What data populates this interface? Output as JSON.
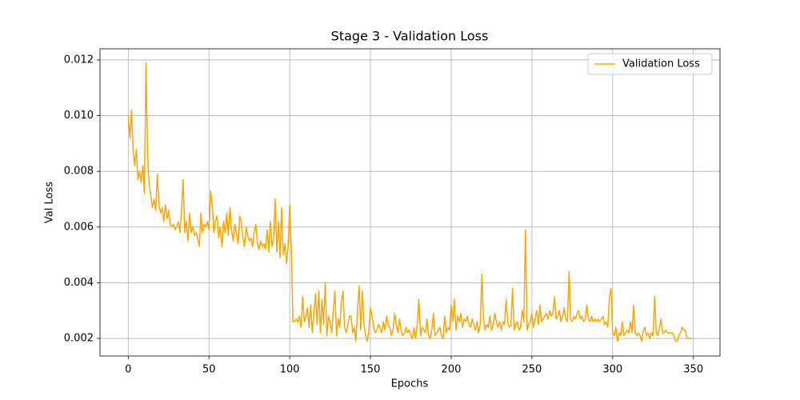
{
  "chart_data": {
    "type": "line",
    "title": "Stage 3 - Validation Loss",
    "x_label": "Epochs",
    "y_label": "Val Loss",
    "xlim": [
      -17.5,
      366.5
    ],
    "ylim": [
      0.00137,
      0.0124
    ],
    "xticks": [
      0,
      50,
      100,
      150,
      200,
      250,
      300,
      350
    ],
    "yticks": [
      0.002,
      0.004,
      0.006,
      0.008,
      {
        "value": 0.01,
        "label": "0.010"
      },
      0.012
    ],
    "grid": true,
    "legend": "upper right",
    "x": [
      0,
      1,
      2,
      3,
      4,
      5,
      6,
      7,
      8,
      9,
      10,
      11,
      12,
      13,
      14,
      15,
      16,
      17,
      18,
      19,
      20,
      21,
      22,
      23,
      24,
      25,
      26,
      27,
      28,
      29,
      30,
      31,
      32,
      33,
      34,
      35,
      36,
      37,
      38,
      39,
      40,
      41,
      42,
      43,
      44,
      45,
      46,
      47,
      48,
      49,
      50,
      51,
      52,
      53,
      54,
      55,
      56,
      57,
      58,
      59,
      60,
      61,
      62,
      63,
      64,
      65,
      66,
      67,
      68,
      69,
      70,
      71,
      72,
      73,
      74,
      75,
      76,
      77,
      78,
      79,
      80,
      81,
      82,
      83,
      84,
      85,
      86,
      87,
      88,
      89,
      90,
      91,
      92,
      93,
      94,
      95,
      96,
      97,
      98,
      99,
      100,
      101,
      102,
      103,
      104,
      105,
      106,
      107,
      108,
      109,
      110,
      111,
      112,
      113,
      114,
      115,
      116,
      117,
      118,
      119,
      120,
      121,
      122,
      123,
      124,
      125,
      126,
      127,
      128,
      129,
      130,
      131,
      132,
      133,
      134,
      135,
      136,
      137,
      138,
      139,
      140,
      141,
      142,
      143,
      144,
      145,
      146,
      147,
      148,
      149,
      150,
      151,
      152,
      153,
      154,
      155,
      156,
      157,
      158,
      159,
      160,
      161,
      162,
      163,
      164,
      165,
      166,
      167,
      168,
      169,
      170,
      171,
      172,
      173,
      174,
      175,
      176,
      177,
      178,
      179,
      180,
      181,
      182,
      183,
      184,
      185,
      186,
      187,
      188,
      189,
      190,
      191,
      192,
      193,
      194,
      195,
      196,
      197,
      198,
      199,
      200,
      201,
      202,
      203,
      204,
      205,
      206,
      207,
      208,
      209,
      210,
      211,
      212,
      213,
      214,
      215,
      216,
      217,
      218,
      219,
      220,
      221,
      222,
      223,
      224,
      225,
      226,
      227,
      228,
      229,
      230,
      231,
      232,
      233,
      234,
      235,
      236,
      237,
      238,
      239,
      240,
      241,
      242,
      243,
      244,
      245,
      246,
      247,
      248,
      249,
      250,
      251,
      252,
      253,
      254,
      255,
      256,
      257,
      258,
      259,
      260,
      261,
      262,
      263,
      264,
      265,
      266,
      267,
      268,
      269,
      270,
      271,
      272,
      273,
      274,
      275,
      276,
      277,
      278,
      279,
      280,
      281,
      282,
      283,
      284,
      285,
      286,
      287,
      288,
      289,
      290,
      291,
      292,
      293,
      294,
      295,
      296,
      297,
      298,
      299,
      300,
      301,
      302,
      303,
      304,
      305,
      306,
      307,
      308,
      309,
      310,
      311,
      312,
      313,
      314,
      315,
      316,
      317,
      318,
      319,
      320,
      321,
      322,
      323,
      324,
      325,
      326,
      327,
      328,
      329,
      330,
      331,
      332,
      333,
      334,
      335,
      336,
      337,
      338,
      339,
      340,
      341,
      342,
      343,
      344,
      345,
      346,
      347,
      348,
      349
    ],
    "series": [
      {
        "name": "Validation Loss",
        "color": "#ffa500",
        "values": [
          0.01,
          0.0092,
          0.0102,
          0.0088,
          0.0082,
          0.0088,
          0.0077,
          0.008,
          0.0076,
          0.0082,
          0.0072,
          0.0119,
          0.0085,
          0.0075,
          0.0071,
          0.0067,
          0.007,
          0.0066,
          0.0079,
          0.0068,
          0.0065,
          0.0067,
          0.0062,
          0.0068,
          0.0063,
          0.0066,
          0.0061,
          0.006,
          0.0061,
          0.0059,
          0.006,
          0.0062,
          0.0058,
          0.0066,
          0.0077,
          0.0058,
          0.0062,
          0.0055,
          0.0065,
          0.0058,
          0.006,
          0.0057,
          0.0058,
          0.0056,
          0.0053,
          0.0065,
          0.0058,
          0.0061,
          0.006,
          0.0062,
          0.0059,
          0.0073,
          0.0068,
          0.0058,
          0.0062,
          0.0064,
          0.0056,
          0.006,
          0.0053,
          0.0062,
          0.0058,
          0.0065,
          0.0057,
          0.0067,
          0.0059,
          0.0055,
          0.0061,
          0.0058,
          0.0054,
          0.0064,
          0.0062,
          0.0056,
          0.0053,
          0.006,
          0.0057,
          0.0055,
          0.0056,
          0.0053,
          0.0058,
          0.0061,
          0.0054,
          0.0052,
          0.0055,
          0.0053,
          0.0054,
          0.0052,
          0.0059,
          0.0051,
          0.0062,
          0.0053,
          0.0056,
          0.007,
          0.0051,
          0.0062,
          0.0049,
          0.0067,
          0.005,
          0.0054,
          0.0047,
          0.0053,
          0.0068,
          0.0052,
          0.0026,
          0.0026,
          0.0027,
          0.0026,
          0.0028,
          0.0024,
          0.0035,
          0.0026,
          0.0028,
          0.0031,
          0.0024,
          0.0032,
          0.0022,
          0.0029,
          0.0036,
          0.0025,
          0.0037,
          0.0022,
          0.0034,
          0.0025,
          0.004,
          0.0021,
          0.0028,
          0.0026,
          0.0022,
          0.003,
          0.0037,
          0.0021,
          0.0027,
          0.0024,
          0.0033,
          0.0037,
          0.0024,
          0.0022,
          0.0025,
          0.0028,
          0.0028,
          0.0022,
          0.0024,
          0.0019,
          0.003,
          0.0039,
          0.0023,
          0.0037,
          0.0025,
          0.0021,
          0.0019,
          0.0023,
          0.0031,
          0.0028,
          0.0024,
          0.0022,
          0.0023,
          0.0025,
          0.0024,
          0.0022,
          0.0026,
          0.0023,
          0.0028,
          0.0025,
          0.0024,
          0.0021,
          0.0023,
          0.0029,
          0.0025,
          0.0022,
          0.0027,
          0.0023,
          0.0021,
          0.0022,
          0.0024,
          0.0022,
          0.0023,
          0.0021,
          0.002,
          0.0024,
          0.002,
          0.0025,
          0.0034,
          0.0021,
          0.0024,
          0.0023,
          0.0022,
          0.0027,
          0.0021,
          0.002,
          0.0023,
          0.0029,
          0.0021,
          0.0022,
          0.0023,
          0.0024,
          0.0021,
          0.002,
          0.0028,
          0.0022,
          0.0024,
          0.0023,
          0.0032,
          0.0026,
          0.0034,
          0.0023,
          0.0028,
          0.0026,
          0.0029,
          0.0024,
          0.0027,
          0.0026,
          0.0028,
          0.0025,
          0.0024,
          0.0027,
          0.0025,
          0.0023,
          0.0026,
          0.0022,
          0.0025,
          0.0043,
          0.0027,
          0.0023,
          0.0025,
          0.0024,
          0.0028,
          0.0023,
          0.0025,
          0.0029,
          0.0026,
          0.0024,
          0.0026,
          0.0023,
          0.0026,
          0.0025,
          0.0034,
          0.0026,
          0.0024,
          0.0025,
          0.0038,
          0.0023,
          0.0025,
          0.0026,
          0.0023,
          0.0024,
          0.003,
          0.0026,
          0.0059,
          0.0023,
          0.0025,
          0.0026,
          0.0029,
          0.0024,
          0.0027,
          0.003,
          0.0025,
          0.0032,
          0.0026,
          0.0027,
          0.0028,
          0.0029,
          0.0027,
          0.003,
          0.0028,
          0.0029,
          0.0035,
          0.0027,
          0.0028,
          0.003,
          0.0026,
          0.0028,
          0.0031,
          0.0027,
          0.0026,
          0.0044,
          0.0027,
          0.0026,
          0.0028,
          0.0027,
          0.0029,
          0.003,
          0.0027,
          0.0028,
          0.0026,
          0.0027,
          0.0032,
          0.0027,
          0.0026,
          0.0028,
          0.0026,
          0.0027,
          0.0026,
          0.0027,
          0.0026,
          0.0027,
          0.0028,
          0.0025,
          0.0026,
          0.0024,
          0.0035,
          0.0038,
          0.0022,
          0.0021,
          0.0024,
          0.0019,
          0.0022,
          0.0021,
          0.0026,
          0.0021,
          0.0022,
          0.0023,
          0.0022,
          0.0026,
          0.0022,
          0.0032,
          0.0022,
          0.0021,
          0.0022,
          0.0021,
          0.0019,
          0.0023,
          0.0024,
          0.0021,
          0.0022,
          0.002,
          0.0022,
          0.0021,
          0.0035,
          0.0022,
          0.0021,
          0.0024,
          0.0027,
          0.0022,
          0.0022,
          0.0023,
          0.0022,
          0.0022,
          0.0022,
          0.0022,
          0.0021,
          0.0019,
          0.0019,
          0.0021,
          0.0022,
          0.0024,
          0.0023,
          0.0023,
          0.002,
          0.002,
          0.002,
          0.002
        ]
      }
    ]
  }
}
